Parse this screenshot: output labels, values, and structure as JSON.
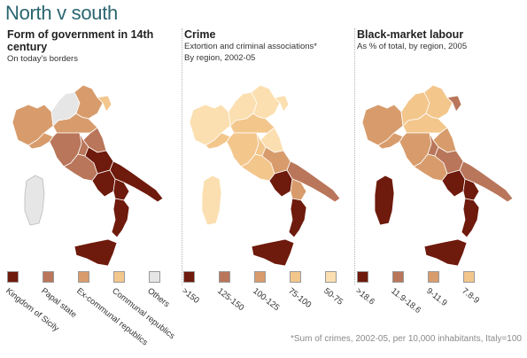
{
  "title": "North v south",
  "colors": {
    "title": "#2a6570",
    "c1": "#6e1a0c",
    "c2": "#b9765a",
    "c3": "#d89c6c",
    "c4": "#f3c68c",
    "c5": "#fbdfb0",
    "other": "#e6e6e6"
  },
  "panels": [
    {
      "title": "Form of government in 14th century",
      "subtitle": [
        "On today's borders"
      ],
      "legend": [
        "Kingdom of Sicily",
        "Papal state",
        "Ex-communal republics",
        "Communal republics",
        "Others"
      ],
      "legend_colors": [
        "#6e1a0c",
        "#b9765a",
        "#d89c6c",
        "#f3c68c",
        "#e6e6e6"
      ]
    },
    {
      "title": "Crime",
      "subtitle": [
        "Extortion and criminal associations*",
        "By region, 2002-05"
      ],
      "legend": [
        ">150",
        "125-150",
        "100-125",
        "75-100",
        "50-75"
      ],
      "legend_colors": [
        "#6e1a0c",
        "#b9765a",
        "#d89c6c",
        "#f3c68c",
        "#fbdfb0"
      ]
    },
    {
      "title": "Black-market labour",
      "subtitle": [
        "As % of total, by region, 2005"
      ],
      "legend": [
        ">18.6",
        "11.9-18.6",
        "9-11.9",
        "7.8-9"
      ],
      "legend_colors": [
        "#6e1a0c",
        "#b9765a",
        "#d89c6c",
        "#f3c68c"
      ]
    }
  ],
  "footnote": "*Sum of crimes, 2002-05, per 10,000 inhabitants, Italy=100"
}
